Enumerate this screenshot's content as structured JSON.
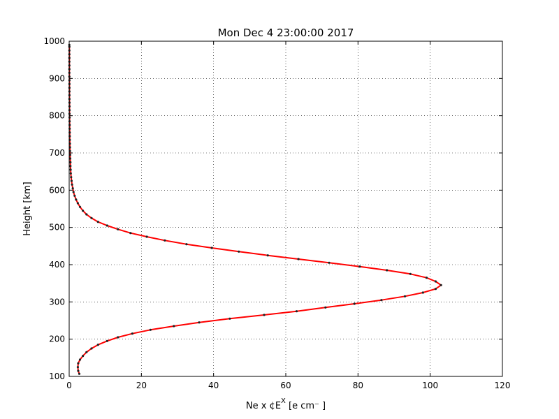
{
  "chart_data": {
    "type": "line",
    "title": "Mon Dec  4 23:00:00 2017",
    "xlabel": "Ne x ¢E",
    "xlabel_sup": "X",
    "xlabel_unit": "  [e cm⁻ ]",
    "ylabel": "Height [km]",
    "xlim": [
      0,
      120
    ],
    "ylim": [
      100,
      1000
    ],
    "x_ticks": [
      0,
      20,
      40,
      60,
      80,
      100,
      120
    ],
    "y_ticks": [
      100,
      200,
      300,
      400,
      500,
      600,
      700,
      800,
      900,
      1000
    ],
    "grid": true,
    "legend": "none",
    "colors": {
      "line": "#ff0000",
      "marker": "#222222",
      "grid": "#000000"
    },
    "series": [
      {
        "x": [
          2.8,
          2.5,
          2.4,
          2.5,
          3.0,
          3.8,
          4.8,
          6.2,
          8.0,
          10.5,
          13.5,
          17.5,
          22.5,
          29.0,
          36.0,
          44.5,
          54.0,
          63.0,
          71.0,
          79.0,
          86.5,
          93.0,
          98.0,
          101.5,
          103.0,
          101.5,
          99.0,
          94.5,
          88.0,
          80.5,
          72.0,
          63.5,
          55.0,
          47.0,
          39.5,
          32.5,
          26.5,
          21.5,
          17.0,
          13.5,
          10.5,
          8.0,
          6.2,
          4.8,
          3.8,
          3.0,
          2.4,
          1.9,
          1.5,
          1.2,
          1.0,
          0.8,
          0.65,
          0.55,
          0.45,
          0.4,
          0.35
        ],
        "y": [
          107,
          115,
          125,
          135,
          145,
          155,
          165,
          175,
          185,
          195,
          205,
          215,
          225,
          235,
          245,
          255,
          265,
          275,
          285,
          295,
          305,
          315,
          325,
          335,
          345,
          355,
          365,
          375,
          385,
          395,
          405,
          415,
          425,
          435,
          445,
          455,
          465,
          475,
          485,
          495,
          505,
          515,
          525,
          535,
          545,
          555,
          565,
          575,
          585,
          595,
          605,
          615,
          625,
          635,
          645,
          655,
          665
        ]
      },
      {
        "x": [
          0.35,
          0.3,
          0.27,
          0.24,
          0.22,
          0.2,
          0.18,
          0.16,
          0.15,
          0.14,
          0.13,
          0.12,
          0.11,
          0.1,
          0.1,
          0.09,
          0.09,
          0.08,
          0.08,
          0.08,
          0.07,
          0.07,
          0.07,
          0.06,
          0.06,
          0.06,
          0.06,
          0.05,
          0.05,
          0.05,
          0.05,
          0.05,
          0.04
        ],
        "y": [
          675,
          685,
          695,
          705,
          715,
          725,
          735,
          745,
          755,
          765,
          775,
          785,
          795,
          805,
          815,
          825,
          835,
          845,
          855,
          865,
          875,
          885,
          895,
          905,
          915,
          925,
          935,
          945,
          955,
          965,
          975,
          985,
          990
        ]
      }
    ]
  }
}
